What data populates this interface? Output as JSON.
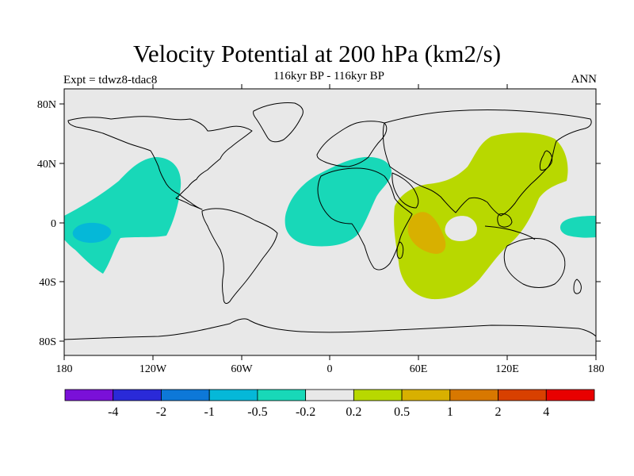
{
  "header": {
    "title": "Velocity Potential at 200 hPa (km2/s)",
    "subtitle": "116kyr BP - 116kyr BP",
    "expt": "Expt = tdwz8-tdac8",
    "season": "ANN"
  },
  "axes": {
    "lat_labels": [
      "80N",
      "40N",
      "0",
      "40S",
      "80S"
    ],
    "lon_labels": [
      "180",
      "120W",
      "60W",
      "0",
      "60E",
      "120E",
      "180"
    ]
  },
  "colorbar": {
    "colors": [
      "#7a10d8",
      "#2a2ad8",
      "#0d78d8",
      "#05b8d8",
      "#18d8b8",
      "#e8e8e8",
      "#b8d800",
      "#d8b000",
      "#d87800",
      "#d84000",
      "#e80000"
    ],
    "labels": [
      "-4",
      "-2",
      "-1",
      "-0.5",
      "-0.2",
      "0.2",
      "0.5",
      "1",
      "2",
      "4"
    ]
  },
  "map_colors": {
    "background": "#e8e8e8",
    "negative_weak": "#18d8b8",
    "negative_mid": "#05b8d8",
    "positive_weak": "#b8d800",
    "positive_mid": "#d8b000"
  }
}
